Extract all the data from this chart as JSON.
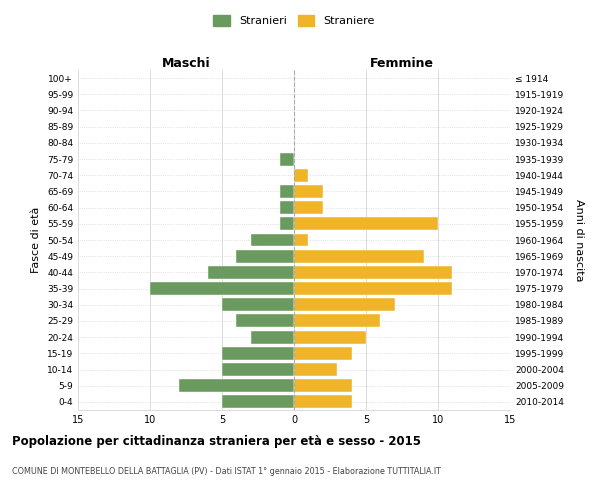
{
  "age_groups": [
    "100+",
    "95-99",
    "90-94",
    "85-89",
    "80-84",
    "75-79",
    "70-74",
    "65-69",
    "60-64",
    "55-59",
    "50-54",
    "45-49",
    "40-44",
    "35-39",
    "30-34",
    "25-29",
    "20-24",
    "15-19",
    "10-14",
    "5-9",
    "0-4"
  ],
  "birth_years": [
    "≤ 1914",
    "1915-1919",
    "1920-1924",
    "1925-1929",
    "1930-1934",
    "1935-1939",
    "1940-1944",
    "1945-1949",
    "1950-1954",
    "1955-1959",
    "1960-1964",
    "1965-1969",
    "1970-1974",
    "1975-1979",
    "1980-1984",
    "1985-1989",
    "1990-1994",
    "1995-1999",
    "2000-2004",
    "2005-2009",
    "2010-2014"
  ],
  "maschi": [
    0,
    0,
    0,
    0,
    0,
    1,
    0,
    1,
    1,
    1,
    3,
    4,
    6,
    10,
    5,
    4,
    3,
    5,
    5,
    8,
    5
  ],
  "femmine": [
    0,
    0,
    0,
    0,
    0,
    0,
    1,
    2,
    2,
    10,
    1,
    9,
    11,
    11,
    7,
    6,
    5,
    4,
    3,
    4,
    4
  ],
  "male_color": "#6b9a5e",
  "female_color": "#f0b429",
  "male_label": "Stranieri",
  "female_label": "Straniere",
  "title": "Popolazione per cittadinanza straniera per età e sesso - 2015",
  "subtitle": "COMUNE DI MONTEBELLO DELLA BATTAGLIA (PV) - Dati ISTAT 1° gennaio 2015 - Elaborazione TUTTITALIA.IT",
  "xlabel_left": "Maschi",
  "xlabel_right": "Femmine",
  "ylabel_left": "Fasce di età",
  "ylabel_right": "Anni di nascita",
  "xlim": 15,
  "background_color": "#ffffff",
  "grid_color": "#cccccc"
}
